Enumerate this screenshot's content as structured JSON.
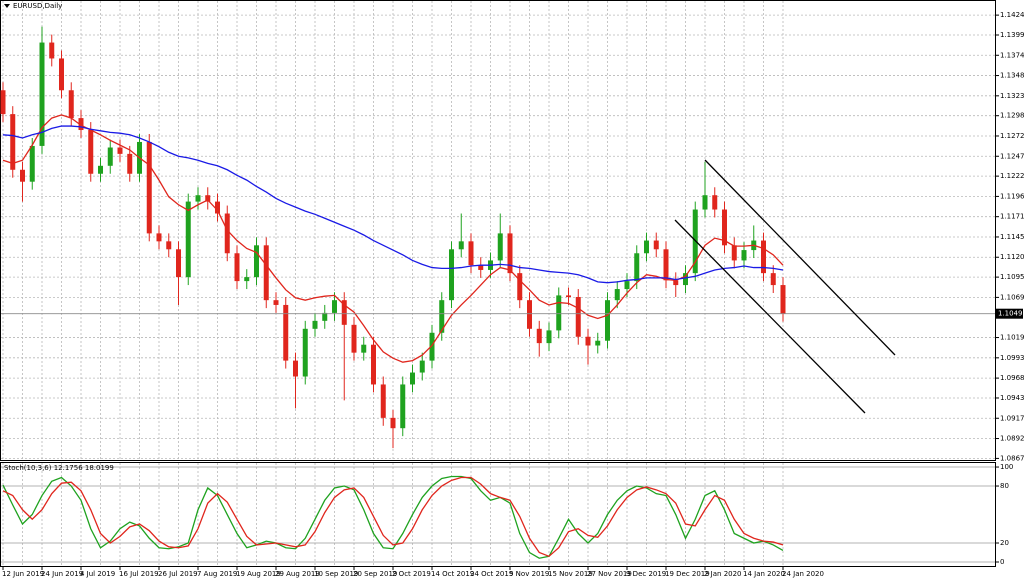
{
  "chart_data": [
    {
      "type": "candlestick",
      "title": "EURUSD,Daily",
      "categories": [
        "12 Jun 2019",
        null,
        null,
        null,
        "24 Jun 2019",
        null,
        null,
        null,
        "4 Jul 2019",
        null,
        null,
        null,
        "16 Jul 2019",
        null,
        null,
        null,
        "26 Jul 2019",
        null,
        null,
        null,
        "7 Aug 2019",
        null,
        null,
        null,
        "19 Aug 2019",
        null,
        null,
        null,
        "29 Aug 2019",
        null,
        null,
        null,
        "10 Sep 2019",
        null,
        null,
        null,
        "20 Sep 2019",
        null,
        null,
        null,
        "2 Oct 2019",
        null,
        null,
        null,
        "14 Oct 2019",
        null,
        null,
        null,
        "24 Oct 2019",
        null,
        null,
        null,
        "5 Nov 2019",
        null,
        null,
        null,
        "15 Nov 2019",
        null,
        null,
        null,
        "27 Nov 2019",
        null,
        null,
        null,
        "9 Dec 2019",
        null,
        null,
        null,
        "19 Dec 2019",
        null,
        null,
        null,
        "2 Jan 2020",
        null,
        null,
        null,
        "14 Jan 2020",
        null,
        null,
        null,
        "24 Jan 2020"
      ],
      "open": [
        1.133,
        1.13,
        1.123,
        1.1215,
        1.126,
        1.139,
        1.137,
        1.133,
        1.1295,
        1.128,
        1.1225,
        1.1235,
        1.1258,
        1.125,
        1.1225,
        1.1265,
        1.115,
        1.114,
        1.113,
        1.1095,
        1.119,
        1.1198,
        1.119,
        1.1175,
        1.1125,
        1.109,
        1.1095,
        1.1135,
        1.1066,
        1.106,
        1.099,
        1.097,
        1.103,
        1.104,
        1.105,
        1.1066,
        1.1035,
        1.1,
        1.101,
        1.096,
        1.0918,
        1.0905,
        1.096,
        1.0975,
        1.099,
        1.1025,
        1.1066,
        1.113,
        1.114,
        1.111,
        1.1104,
        1.1116,
        1.115,
        1.11,
        1.1066,
        1.103,
        1.1012,
        1.1028,
        1.1072,
        1.107,
        1.102,
        1.1009,
        1.1015,
        1.1066,
        1.108,
        1.109,
        1.1125,
        1.1141,
        1.113,
        1.1091,
        1.1085,
        1.11,
        1.118,
        1.1198,
        1.118,
        1.1135,
        1.1116,
        1.1129,
        1.1141,
        1.11,
        1.1085
      ],
      "high": [
        1.134,
        1.131,
        1.124,
        1.127,
        1.141,
        1.14,
        1.138,
        1.134,
        1.1305,
        1.129,
        1.1245,
        1.1268,
        1.1268,
        1.126,
        1.1275,
        1.1275,
        1.116,
        1.115,
        1.114,
        1.12,
        1.1208,
        1.1208,
        1.12,
        1.1185,
        1.1135,
        1.1105,
        1.1145,
        1.1145,
        1.1076,
        1.107,
        1.1,
        1.104,
        1.105,
        1.106,
        1.1076,
        1.1076,
        1.1045,
        1.102,
        1.102,
        1.097,
        1.0928,
        1.097,
        1.0985,
        1.1,
        1.1035,
        1.1076,
        1.114,
        1.1175,
        1.115,
        1.112,
        1.1126,
        1.1175,
        1.116,
        1.111,
        1.1076,
        1.104,
        1.1038,
        1.1082,
        1.1082,
        1.108,
        1.103,
        1.1025,
        1.1076,
        1.109,
        1.11,
        1.1135,
        1.1151,
        1.1151,
        1.114,
        1.1101,
        1.111,
        1.119,
        1.124,
        1.1208,
        1.119,
        1.1145,
        1.1139,
        1.116,
        1.1151,
        1.111,
        1.1095
      ],
      "low": [
        1.129,
        1.122,
        1.119,
        1.1205,
        1.125,
        1.136,
        1.132,
        1.1285,
        1.127,
        1.1215,
        1.1215,
        1.1225,
        1.124,
        1.1215,
        1.1215,
        1.114,
        1.113,
        1.112,
        1.106,
        1.1085,
        1.118,
        1.118,
        1.1165,
        1.1115,
        1.108,
        1.108,
        1.1085,
        1.1056,
        1.105,
        1.098,
        1.093,
        1.096,
        1.102,
        1.103,
        1.104,
        1.094,
        1.099,
        1.099,
        1.095,
        1.0908,
        1.088,
        1.0895,
        1.095,
        1.0965,
        1.098,
        1.1015,
        1.1056,
        1.112,
        1.11,
        1.1094,
        1.1094,
        1.1106,
        1.109,
        1.1056,
        1.102,
        1.0995,
        1.1002,
        1.1018,
        1.106,
        1.101,
        1.0985,
        1.0999,
        1.1005,
        1.1056,
        1.107,
        1.108,
        1.1115,
        1.112,
        1.1081,
        1.107,
        1.1075,
        1.109,
        1.117,
        1.117,
        1.1125,
        1.1106,
        1.1106,
        1.1119,
        1.109,
        1.1075,
        1.1039
      ],
      "close": [
        1.13,
        1.123,
        1.1215,
        1.126,
        1.139,
        1.137,
        1.133,
        1.1295,
        1.128,
        1.1225,
        1.1235,
        1.1258,
        1.125,
        1.1225,
        1.1265,
        1.115,
        1.114,
        1.113,
        1.1095,
        1.119,
        1.1198,
        1.119,
        1.1175,
        1.1125,
        1.109,
        1.1095,
        1.1135,
        1.1066,
        1.106,
        1.099,
        1.097,
        1.103,
        1.104,
        1.105,
        1.1066,
        1.1035,
        1.1,
        1.101,
        1.096,
        1.0918,
        1.0905,
        1.096,
        1.0975,
        1.099,
        1.1025,
        1.1066,
        1.113,
        1.114,
        1.111,
        1.1104,
        1.1116,
        1.115,
        1.11,
        1.1066,
        1.103,
        1.1012,
        1.1028,
        1.1072,
        1.107,
        1.102,
        1.1009,
        1.1015,
        1.1066,
        1.108,
        1.109,
        1.1125,
        1.1141,
        1.113,
        1.1091,
        1.1085,
        1.11,
        1.118,
        1.1198,
        1.118,
        1.1135,
        1.1116,
        1.1129,
        1.1141,
        1.11,
        1.1085,
        1.1049
      ],
      "up_color": "#1fa21f",
      "down_color": "#e0261d",
      "overlays": [
        {
          "color": "#e0261d",
          "values": [
            1.1242,
            1.1238,
            1.1242,
            1.1261,
            1.1283,
            1.1295,
            1.1299,
            1.1295,
            1.1286,
            1.128,
            1.1274,
            1.1267,
            1.1261,
            1.1255,
            1.1245,
            1.1236,
            1.1217,
            1.1196,
            1.1186,
            1.1179,
            1.1186,
            1.1192,
            1.1179,
            1.1154,
            1.1141,
            1.1131,
            1.1126,
            1.111,
            1.1094,
            1.1079,
            1.1069,
            1.1066,
            1.1069,
            1.1071,
            1.1072,
            1.106,
            1.1051,
            1.1034,
            1.1016,
            1.1001,
            1.0993,
            1.0988,
            1.099,
            1.0997,
            1.1009,
            1.1028,
            1.1047,
            1.106,
            1.1072,
            1.1085,
            1.1098,
            1.1107,
            1.1104,
            1.1091,
            1.1079,
            1.1066,
            1.106,
            1.1063,
            1.1062,
            1.1056,
            1.1047,
            1.1043,
            1.1047,
            1.106,
            1.1075,
            1.1088,
            1.1098,
            1.1096,
            1.1092,
            1.1091,
            1.1096,
            1.1114,
            1.1135,
            1.1144,
            1.1141,
            1.1134,
            1.1134,
            1.1135,
            1.1131,
            1.1123,
            1.111
          ]
        },
        {
          "color": "#1a1ae6",
          "values": [
            1.1274,
            1.1273,
            1.127,
            1.1274,
            1.1277,
            1.1282,
            1.1285,
            1.1285,
            1.1284,
            1.1281,
            1.1279,
            1.1277,
            1.1276,
            1.1274,
            1.127,
            1.1265,
            1.1259,
            1.1252,
            1.1247,
            1.1245,
            1.1242,
            1.1238,
            1.1235,
            1.123,
            1.1223,
            1.1217,
            1.1209,
            1.1202,
            1.1194,
            1.1188,
            1.1183,
            1.1178,
            1.1174,
            1.1169,
            1.1164,
            1.1159,
            1.1154,
            1.1148,
            1.1141,
            1.1135,
            1.1129,
            1.1123,
            1.1116,
            1.1111,
            1.1107,
            1.1106,
            1.1106,
            1.1107,
            1.1109,
            1.111,
            1.111,
            1.1111,
            1.111,
            1.1107,
            1.1106,
            1.1104,
            1.1102,
            1.1101,
            1.11,
            1.1098,
            1.1094,
            1.1089,
            1.1088,
            1.1089,
            1.1091,
            1.1092,
            1.1094,
            1.1094,
            1.1094,
            1.1092,
            1.1094,
            1.1096,
            1.11,
            1.1104,
            1.1106,
            1.1107,
            1.1109,
            1.1107,
            1.1107,
            1.1106,
            1.1104
          ]
        }
      ],
      "current_price": {
        "value": 1.1049,
        "label": "1.10490"
      },
      "ylim": [
        1.0865,
        1.1441
      ],
      "yticks": [
        1.14245,
        1.13995,
        {
          "value": 1.1374,
          "label": "1.13740"
        },
        1.13485,
        1.1323,
        {
          "value": 1.1298,
          "label": "1.12980"
        },
        1.12725,
        {
          "value": 1.1247,
          "label": "1.12470"
        },
        {
          "value": 1.1222,
          "label": "1.12220"
        },
        1.11965,
        {
          "value": 1.1171,
          "label": "1.11710"
        },
        1.11455,
        {
          "value": 1.112,
          "label": "1.11200"
        },
        {
          "value": 1.1095,
          "label": "1.10950"
        },
        1.10695,
        {
          "value": 1.1019,
          "label": "1.10190"
        },
        1.09935,
        {
          "value": 1.0968,
          "label": "1.09680"
        },
        {
          "value": 1.0943,
          "label": "1.09430"
        },
        1.09175,
        {
          "value": 1.0892,
          "label": "1.08920"
        },
        {
          "value": 1.0867,
          "label": "1.08670"
        }
      ],
      "grid": true
    },
    {
      "type": "line",
      "title": "Stoch(10,3,6) 12.1756 18.0199",
      "series": [
        {
          "color": "#1fa21f",
          "values": [
            81,
            60,
            40,
            50,
            70,
            85,
            89,
            80,
            65,
            35,
            15,
            22,
            35,
            42,
            38,
            25,
            15,
            14,
            16,
            20,
            55,
            78,
            70,
            50,
            30,
            15,
            18,
            22,
            20,
            15,
            14,
            25,
            45,
            65,
            78,
            80,
            76,
            55,
            30,
            15,
            14,
            30,
            50,
            68,
            80,
            88,
            90,
            90,
            88,
            75,
            65,
            68,
            62,
            30,
            10,
            4,
            6,
            25,
            45,
            30,
            20,
            30,
            50,
            65,
            75,
            80,
            78,
            72,
            70,
            50,
            25,
            45,
            70,
            75,
            55,
            30,
            25,
            20,
            22,
            18,
            12.1756
          ]
        },
        {
          "color": "#e0261d",
          "values": [
            75,
            70,
            55,
            45,
            55,
            72,
            83,
            84,
            75,
            55,
            30,
            20,
            27,
            37,
            40,
            33,
            22,
            16,
            15,
            17,
            35,
            62,
            72,
            63,
            45,
            27,
            18,
            19,
            20,
            18,
            16,
            18,
            32,
            52,
            68,
            76,
            78,
            68,
            48,
            28,
            18,
            20,
            35,
            55,
            70,
            80,
            86,
            89,
            89,
            82,
            72,
            68,
            65,
            48,
            25,
            10,
            6,
            15,
            32,
            35,
            28,
            26,
            38,
            55,
            68,
            76,
            79,
            76,
            72,
            62,
            40,
            38,
            55,
            70,
            65,
            45,
            30,
            25,
            22,
            21,
            18.0199
          ]
        }
      ],
      "ylim": [
        -4.2,
        105.3
      ],
      "yticks": [
        100,
        80,
        20,
        0
      ]
    }
  ]
}
